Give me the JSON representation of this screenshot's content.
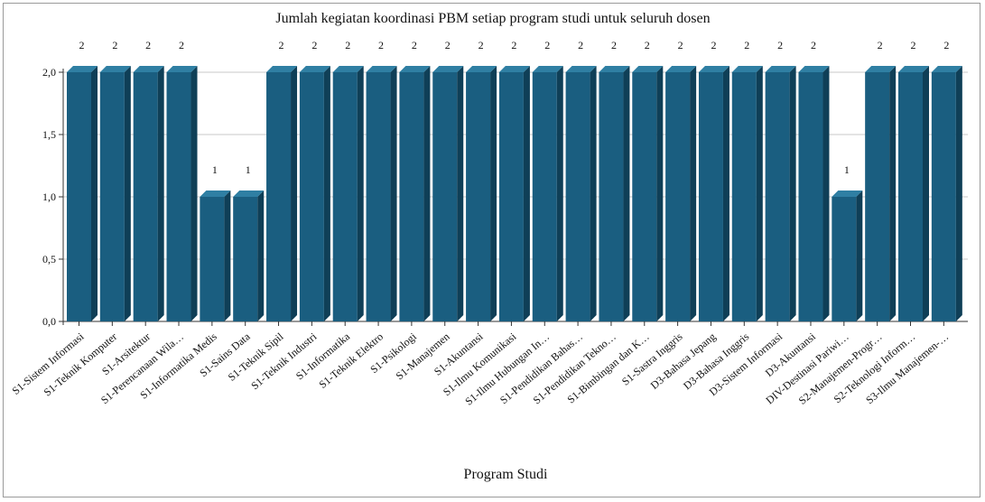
{
  "chart_data": {
    "type": "bar",
    "title": "Jumlah kegiatan koordinasi PBM setiap program studi untuk seluruh dosen",
    "xlabel": "Program Studi",
    "ylabel": "",
    "ylim": [
      0,
      2
    ],
    "yticks": [
      "0,0",
      "0,5",
      "1,0",
      "1,5",
      "2,0"
    ],
    "yticks_values": [
      0,
      0.5,
      1,
      1.5,
      2
    ],
    "grid": true,
    "bar_color": "#1a5e80",
    "categories": [
      "S1-Sistem Informasi",
      "S1-Teknik Komputer",
      "S1-Arsitektur",
      "S1-Perencanaan Wila…",
      "S1-Informatika Medis",
      "S1-Sains Data",
      "S1-Teknik Sipil",
      "S1-Teknik Industri",
      "S1-Informatika",
      "S1-Teknik Elektro",
      "S1-Psikologi",
      "S1-Manajemen",
      "S1-Akuntansi",
      "S1-Ilmu Komunikasi",
      "S1-Ilmu Hubungan In…",
      "S1-Pendidikan Bahas…",
      "S1-Pendidikan Tekno…",
      "S1-Bimbingan dan K…",
      "S1-Sastra Inggris",
      "D3-Bahasa Jepang",
      "D3-Bahasa Inggris",
      "D3-Sistem Informasi",
      "D3-Akuntansi",
      "DIV-Destinasi Pariwi…",
      "S2-Manajemen-Progr…",
      "S2-Teknologi Inform…",
      "S3-Ilmu Manajemen-…"
    ],
    "values": [
      2,
      2,
      2,
      2,
      1,
      1,
      2,
      2,
      2,
      2,
      2,
      2,
      2,
      2,
      2,
      2,
      2,
      2,
      2,
      2,
      2,
      2,
      2,
      1,
      2,
      2,
      2
    ],
    "data_labels": [
      "2",
      "2",
      "2",
      "2",
      "1",
      "1",
      "2",
      "2",
      "2",
      "2",
      "2",
      "2",
      "2",
      "2",
      "2",
      "2",
      "2",
      "2",
      "2",
      "2",
      "2",
      "2",
      "2",
      "1",
      "2",
      "2",
      "2"
    ]
  }
}
